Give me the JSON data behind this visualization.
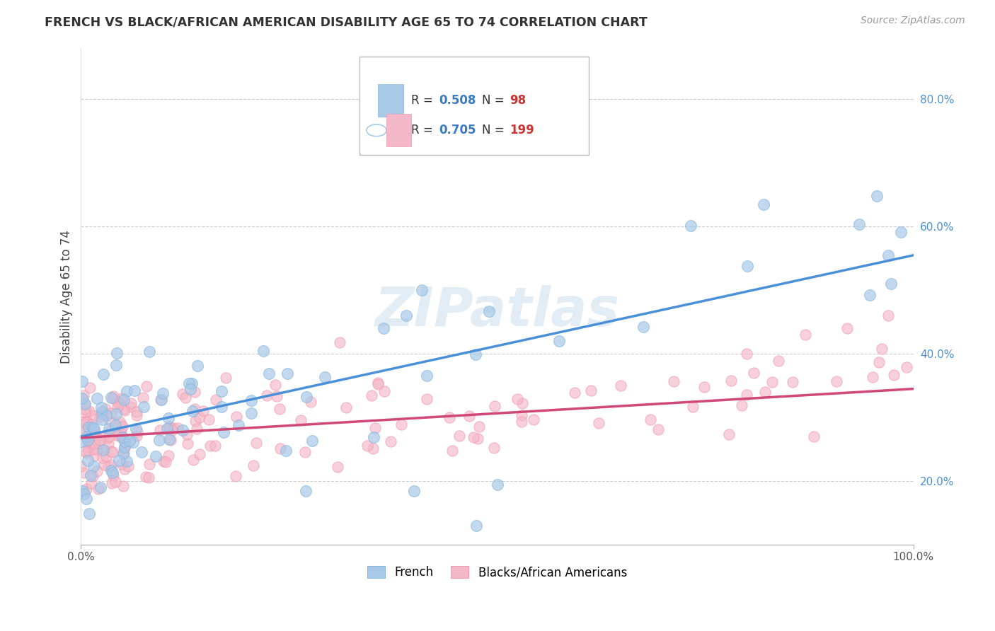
{
  "title": "FRENCH VS BLACK/AFRICAN AMERICAN DISABILITY AGE 65 TO 74 CORRELATION CHART",
  "source": "Source: ZipAtlas.com",
  "ylabel": "Disability Age 65 to 74",
  "xlim": [
    0,
    1
  ],
  "ylim": [
    0.1,
    0.88
  ],
  "yticks": [
    0.2,
    0.4,
    0.6,
    0.8
  ],
  "ytick_labels": [
    "20.0%",
    "40.0%",
    "60.0%",
    "80.0%"
  ],
  "french_color": "#a8c8e8",
  "black_color": "#f4b8c8",
  "french_R": 0.508,
  "french_N": 98,
  "black_R": 0.705,
  "black_N": 199,
  "french_line_start_y": 0.27,
  "french_line_end_y": 0.555,
  "black_line_start_y": 0.268,
  "black_line_end_y": 0.345,
  "watermark": "ZIPatlas",
  "background_color": "#ffffff",
  "grid_color": "#cccccc",
  "title_color": "#333333",
  "axis_label_color": "#444444",
  "ytick_color": "#4a90d9",
  "xtick_color": "#555555",
  "legend_R_color": "#3a7abf",
  "legend_N_color": "#cc3333",
  "french_line_color": "#4a90d9",
  "black_line_color": "#d04878"
}
